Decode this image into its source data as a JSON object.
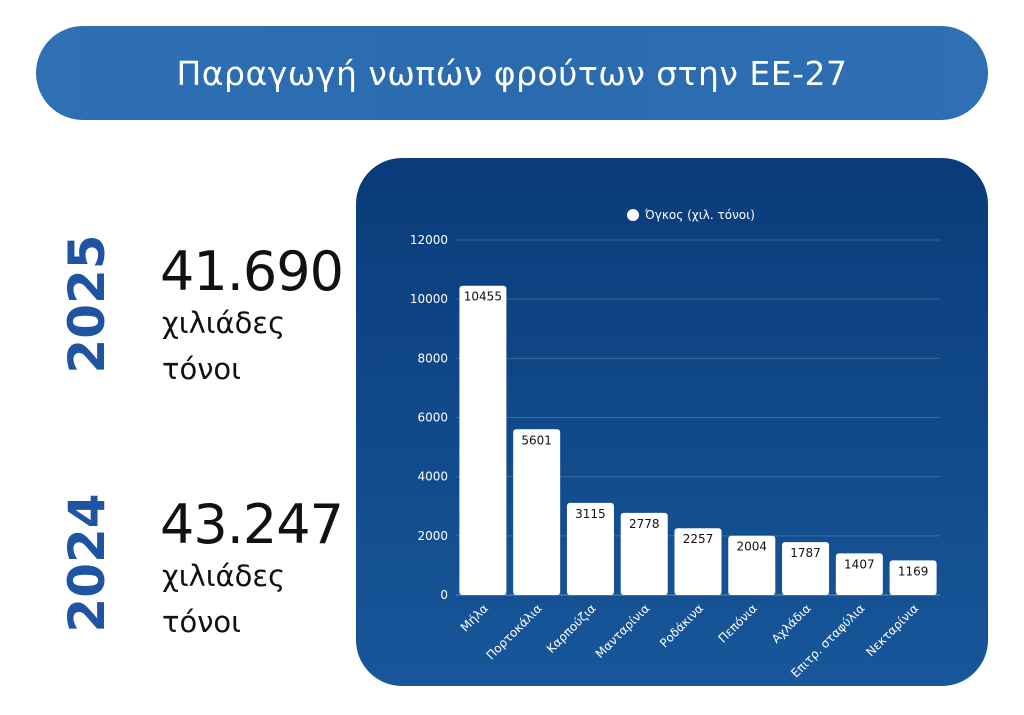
{
  "header": {
    "title": "Παραγωγή νωπών φρούτων στην ΕΕ-27"
  },
  "stats": [
    {
      "year": "2025",
      "value": "41.690",
      "unit_line1": "χιλιάδες",
      "unit_line2": "τόνοι"
    },
    {
      "year": "2024",
      "value": "43.247",
      "unit_line1": "χιλιάδες",
      "unit_line2": "τόνοι"
    }
  ],
  "colors": {
    "banner": "#2f6fb3",
    "year": "#1f54a2",
    "panel_top": "#0a3b7a",
    "panel_bottom": "#17579a",
    "bar": "#ffffff"
  },
  "chart_data": {
    "type": "bar",
    "title": "",
    "legend": "Όγκος (χιλ. τόνοι)",
    "categories": [
      "Μήλα",
      "Πορτοκάλια",
      "Καρπούζια",
      "Μανταρίνια",
      "Ροδάκινα",
      "Πεπόνια",
      "Αχλάδια",
      "Επιτρ. σταφύλια",
      "Νεκταρίνια"
    ],
    "values": [
      10455,
      5601,
      3115,
      2778,
      2257,
      2004,
      1787,
      1407,
      1169
    ],
    "yticks": [
      0,
      2000,
      4000,
      6000,
      8000,
      10000,
      12000
    ],
    "ylim": [
      0,
      12000
    ],
    "xlabel": "",
    "ylabel": ""
  }
}
